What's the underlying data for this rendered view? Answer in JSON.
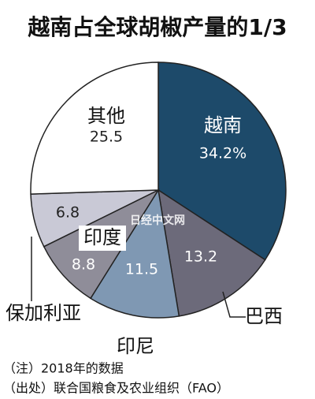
{
  "chart_data": {
    "type": "pie",
    "title": "越南占全球胡椒产量的1/3",
    "categories": [
      "越南",
      "巴西",
      "印尼",
      "印度",
      "保加利亚",
      "其他"
    ],
    "values": [
      34.2,
      13.2,
      11.5,
      8.8,
      6.8,
      25.5
    ],
    "value_labels": [
      "34.2%",
      "13.2",
      "11.5",
      "8.8",
      "6.8",
      "25.5"
    ],
    "colors": [
      "#1d4a6a",
      "#6c6a7a",
      "#7f98b3",
      "#8f8d99",
      "#c9c9d6",
      "#ffffff"
    ],
    "watermark": "日经中文网",
    "notes": [
      "（注）2018年的数据",
      "（出处）联合国粮食及农业组织（FAO）"
    ]
  }
}
